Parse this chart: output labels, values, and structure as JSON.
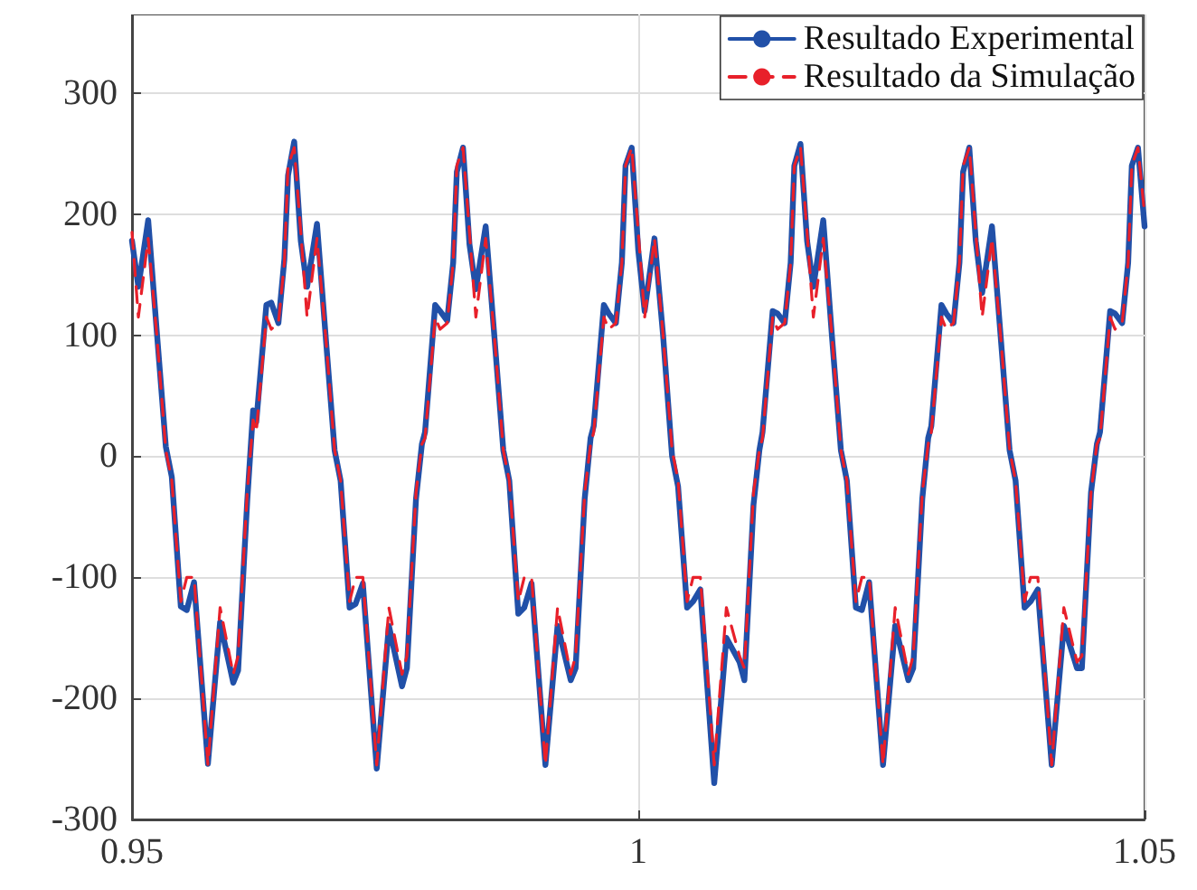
{
  "chart_data": {
    "type": "line",
    "xlim": [
      0.95,
      1.05
    ],
    "xticks": [
      0.95,
      1,
      1.05
    ],
    "ylim": [
      -300,
      365
    ],
    "yticks": [
      -300,
      -200,
      -100,
      0,
      100,
      200,
      300
    ],
    "grid": true,
    "legend": "top right",
    "marker": "none",
    "x": [
      0.95,
      0.95063,
      0.9516,
      0.95245,
      0.95334,
      0.95393,
      0.95482,
      0.95541,
      0.95613,
      0.9575,
      0.9587,
      0.96,
      0.96048,
      0.96138,
      0.96196,
      0.96227,
      0.96327,
      0.96375,
      0.96446,
      0.96505,
      0.96541,
      0.96602,
      0.96667,
      0.96729,
      0.96827,
      0.96912,
      0.97001,
      0.9706,
      0.97149,
      0.97208,
      0.9728,
      0.97417,
      0.97537,
      0.97667,
      0.97715,
      0.97805,
      0.97863,
      0.97894,
      0.97994,
      0.98042,
      0.98113,
      0.98172,
      0.98208,
      0.98269,
      0.98333,
      0.98396,
      0.98493,
      0.98578,
      0.98667,
      0.98726,
      0.98815,
      0.98874,
      0.98946,
      0.99083,
      0.99203,
      0.99333,
      0.99381,
      0.99471,
      0.99529,
      0.9956,
      0.9966,
      0.99708,
      0.99779,
      0.99838,
      0.99874,
      0.99935,
      1.0,
      1.00063,
      1.0016,
      1.00245,
      1.00334,
      1.00393,
      1.00482,
      1.00541,
      1.00613,
      1.0075,
      1.0087,
      1.01,
      1.01048,
      1.01138,
      1.01196,
      1.01227,
      1.01327,
      1.01375,
      1.01446,
      1.01505,
      1.01541,
      1.01602,
      1.01667,
      1.01729,
      1.01827,
      1.01912,
      1.02001,
      1.0206,
      1.02149,
      1.02208,
      1.0228,
      1.02417,
      1.02537,
      1.02667,
      1.02715,
      1.02805,
      1.02863,
      1.02894,
      1.02994,
      1.03042,
      1.03113,
      1.03172,
      1.03208,
      1.03269,
      1.03333,
      1.03396,
      1.03493,
      1.03578,
      1.03667,
      1.03726,
      1.03815,
      1.03874,
      1.03946,
      1.04083,
      1.04203,
      1.04333,
      1.04381,
      1.04471,
      1.04529,
      1.0456,
      1.0466,
      1.04708,
      1.04779,
      1.04838,
      1.04874,
      1.04935,
      1.05
    ],
    "series": [
      {
        "name": "Resultado Experimental",
        "color": "#2150a8",
        "line_style": "solid",
        "values": [
          178,
          140,
          195,
          103,
          8,
          -17,
          -124,
          -127,
          -104,
          -254,
          -137,
          -187,
          -177,
          -37,
          38,
          28,
          125,
          127,
          110,
          163,
          232,
          260,
          178,
          140,
          192,
          100,
          5,
          -20,
          -125,
          -122,
          -105,
          -258,
          -140,
          -190,
          -175,
          -35,
          10,
          20,
          125,
          120,
          112,
          160,
          235,
          255,
          175,
          138,
          190,
          100,
          5,
          -20,
          -130,
          -125,
          -105,
          -255,
          -140,
          -185,
          -175,
          -35,
          15,
          25,
          125,
          118,
          110,
          160,
          240,
          255,
          170,
          120,
          180,
          100,
          0,
          -25,
          -125,
          -120,
          -110,
          -270,
          -150,
          -170,
          -185,
          -40,
          5,
          20,
          120,
          118,
          110,
          160,
          240,
          258,
          178,
          140,
          195,
          100,
          5,
          -20,
          -125,
          -127,
          -104,
          -255,
          -140,
          -185,
          -175,
          -35,
          15,
          25,
          125,
          118,
          110,
          160,
          235,
          255,
          178,
          135,
          190,
          100,
          5,
          -20,
          -125,
          -120,
          -110,
          -255,
          -140,
          -175,
          -175,
          -30,
          10,
          20,
          120,
          118,
          110,
          160,
          240,
          255,
          190
        ]
      },
      {
        "name": "Resultado da Simulação",
        "color": "#e8202a",
        "line_style": "dashed",
        "values": [
          185,
          115,
          180,
          100,
          5,
          -20,
          -120,
          -100,
          -100,
          -255,
          -125,
          -180,
          -165,
          -30,
          30,
          20,
          115,
          105,
          110,
          160,
          240,
          255,
          185,
          115,
          180,
          100,
          5,
          -20,
          -120,
          -100,
          -100,
          -255,
          -125,
          -180,
          -165,
          -30,
          10,
          15,
          115,
          105,
          110,
          160,
          240,
          255,
          185,
          115,
          180,
          100,
          5,
          -20,
          -120,
          -100,
          -100,
          -255,
          -125,
          -180,
          -165,
          -30,
          10,
          20,
          115,
          105,
          110,
          160,
          240,
          255,
          185,
          115,
          180,
          100,
          5,
          -20,
          -120,
          -100,
          -100,
          -255,
          -125,
          -165,
          -175,
          -30,
          5,
          15,
          115,
          105,
          110,
          160,
          240,
          255,
          185,
          115,
          180,
          100,
          5,
          -20,
          -120,
          -100,
          -100,
          -255,
          -125,
          -180,
          -165,
          -30,
          10,
          20,
          115,
          105,
          110,
          160,
          240,
          255,
          185,
          115,
          180,
          100,
          5,
          -20,
          -120,
          -100,
          -100,
          -255,
          -125,
          -170,
          -165,
          -30,
          10,
          15,
          115,
          105,
          110,
          160,
          240,
          255,
          200
        ]
      }
    ]
  }
}
